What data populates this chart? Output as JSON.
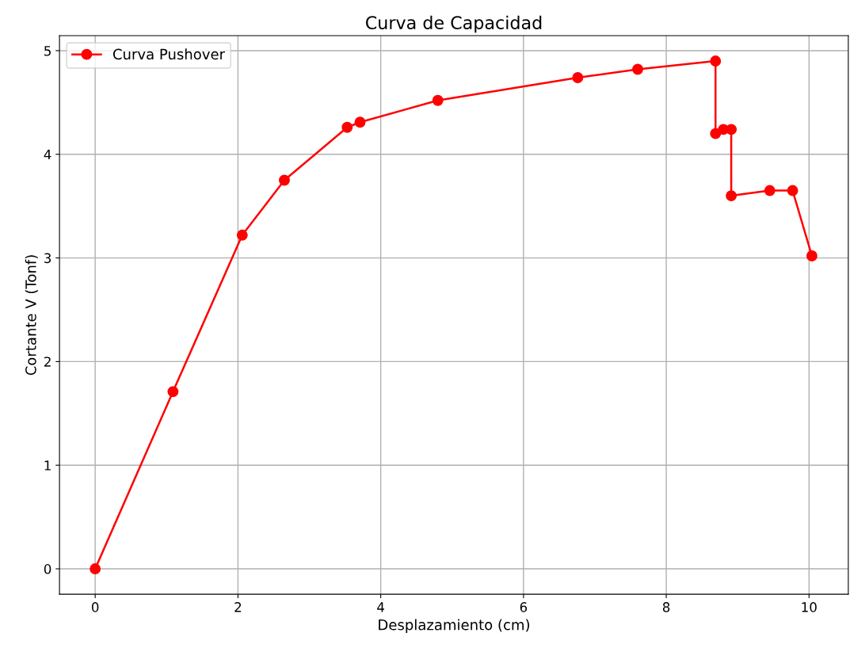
{
  "chart_data": {
    "type": "line",
    "title": "Curva de Capacidad",
    "xlabel": "Desplazamiento (cm)",
    "ylabel": "Cortante V (Tonf)",
    "x": [
      0,
      1.09,
      2.06,
      2.65,
      3.53,
      3.71,
      4.8,
      6.76,
      7.6,
      8.69,
      8.69,
      8.8,
      8.91,
      8.91,
      9.45,
      9.77,
      10.04
    ],
    "series": [
      {
        "name": "Curva Pushover",
        "color": "#ff0000",
        "values": [
          0,
          1.71,
          3.22,
          3.75,
          4.26,
          4.31,
          4.52,
          4.74,
          4.82,
          4.9,
          4.2,
          4.24,
          4.24,
          3.6,
          3.65,
          3.65,
          3.02
        ]
      }
    ],
    "xlim": [
      -0.5,
      10.55
    ],
    "ylim": [
      -0.245,
      5.145
    ],
    "xticks": [
      0,
      2,
      4,
      6,
      8,
      10
    ],
    "yticks": [
      0,
      1,
      2,
      3,
      4,
      5
    ],
    "grid": true,
    "legend": "top left",
    "marker": "circle",
    "line_style": "solid"
  }
}
